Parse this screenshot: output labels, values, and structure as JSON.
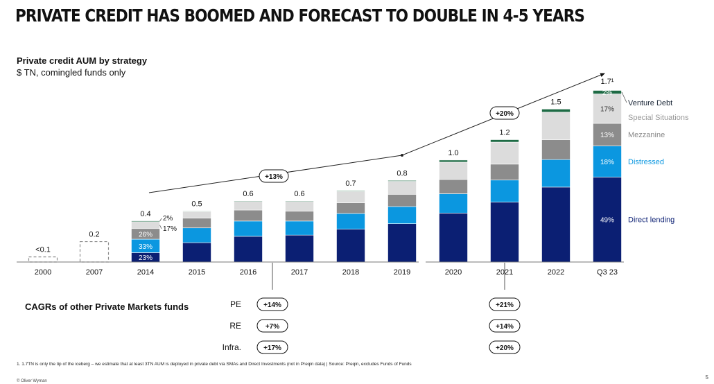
{
  "title": "PRIVATE CREDIT HAS BOOMED AND FORECAST TO DOUBLE IN 4-5 YEARS",
  "subtitle": "Private credit AUM by strategy",
  "units": "$ TN, comingled funds only",
  "colors": {
    "direct_lending": "#0b1f73",
    "distressed": "#0b97e0",
    "mezzanine": "#8c8c8c",
    "special_situations": "#dcdcdc",
    "venture_debt": "#1e6b45",
    "outline_dashed": "#8c8c8c"
  },
  "chart_data": {
    "type": "bar",
    "stacked": true,
    "categories": [
      "2000",
      "2007",
      "2014",
      "2015",
      "2016",
      "2017",
      "2018",
      "2019",
      "2020",
      "2021",
      "2022",
      "Q3 23"
    ],
    "totals": [
      0.05,
      0.2,
      0.4,
      0.5,
      0.6,
      0.6,
      0.7,
      0.8,
      1.0,
      1.2,
      1.5,
      1.7
    ],
    "total_labels": [
      "<0.1",
      "0.2",
      "0.4",
      "0.5",
      "0.6",
      "0.6",
      "0.7",
      "0.8",
      "1.0",
      "1.2",
      "1.5",
      "1.7¹"
    ],
    "unbroken_down": [
      true,
      true,
      false,
      false,
      false,
      false,
      false,
      false,
      false,
      false,
      false,
      false
    ],
    "series": [
      {
        "name": "Direct lending",
        "color_key": "direct_lending",
        "shares": [
          null,
          null,
          0.23,
          0.38,
          0.42,
          0.44,
          0.46,
          0.47,
          0.48,
          0.49,
          0.49,
          0.49
        ]
      },
      {
        "name": "Distressed",
        "color_key": "distressed",
        "shares": [
          null,
          null,
          0.33,
          0.29,
          0.25,
          0.23,
          0.22,
          0.21,
          0.19,
          0.18,
          0.18,
          0.18
        ]
      },
      {
        "name": "Mezzanine",
        "color_key": "mezzanine",
        "shares": [
          null,
          null,
          0.26,
          0.19,
          0.18,
          0.16,
          0.15,
          0.15,
          0.14,
          0.13,
          0.13,
          0.13
        ]
      },
      {
        "name": "Special Situations",
        "color_key": "special_situations",
        "shares": [
          null,
          null,
          0.17,
          0.13,
          0.14,
          0.16,
          0.16,
          0.16,
          0.17,
          0.18,
          0.18,
          0.17
        ]
      },
      {
        "name": "Venture Debt",
        "color_key": "venture_debt",
        "shares": [
          null,
          null,
          0.02,
          0.01,
          0.01,
          0.01,
          0.01,
          0.01,
          0.02,
          0.02,
          0.02,
          0.02
        ]
      }
    ],
    "segment_labels": {
      "2014": [
        "23%",
        "33%",
        "26%",
        "17%",
        "2%"
      ],
      "Q3 23": [
        "49%",
        "18%",
        "13%",
        "17%",
        "2%"
      ]
    },
    "legend": [
      "Venture Debt",
      "Special Situations",
      "Mezzanine",
      "Distressed",
      "Direct lending"
    ],
    "legend_placement": "right",
    "trend_labels": [
      "+13%",
      "+20%"
    ],
    "ylim": [
      0,
      1.8
    ]
  },
  "cagr": {
    "heading": "CAGRs of other Private Markets funds",
    "rows": [
      {
        "label": "PE",
        "period1": "+14%",
        "period2": "+21%"
      },
      {
        "label": "RE",
        "period1": "+7%",
        "period2": "+14%"
      },
      {
        "label": "Infra.",
        "period1": "+17%",
        "period2": "+20%"
      }
    ]
  },
  "footnote": "1. 1.7TN is only the tip of the iceberg – we estimate that at least 3TN AUM is deployed in private debt via SMAs and Direct Investments (not in Preqin data) | Source: Preqin, excludes Funds of Funds",
  "copyright": "© Oliver Wyman",
  "page_number": "5"
}
